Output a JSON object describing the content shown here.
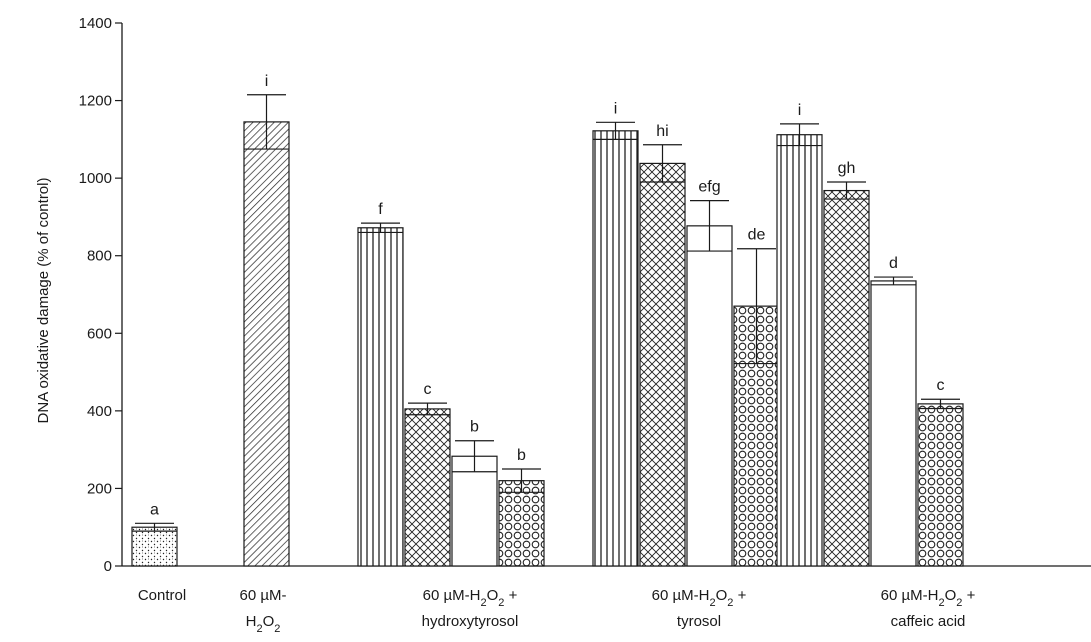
{
  "chart_data": {
    "type": "bar",
    "ylabel": "DNA oxidative damage (% of control)",
    "ylim": [
      0,
      1400
    ],
    "yticks": [
      0,
      200,
      400,
      600,
      800,
      1000,
      1200,
      1400
    ],
    "grid": false,
    "legend": "none",
    "groups": [
      {
        "label_lines": [
          "Control"
        ],
        "bars": [
          {
            "value": 100,
            "error": 10,
            "letter": "a",
            "pattern": "dots"
          }
        ]
      },
      {
        "label_lines": [
          "60 µM-",
          "H2O2"
        ],
        "bars": [
          {
            "value": 1145,
            "error": 70,
            "letter": "i",
            "pattern": "diagonal"
          }
        ]
      },
      {
        "label_lines": [
          "60 µM-H2O2 +",
          "hydroxytyrosol"
        ],
        "bars": [
          {
            "value": 872,
            "error": 12,
            "letter": "f",
            "pattern": "vertical"
          },
          {
            "value": 405,
            "error": 15,
            "letter": "c",
            "pattern": "crosshatch"
          },
          {
            "value": 283,
            "error": 40,
            "letter": "b",
            "pattern": "open"
          },
          {
            "value": 220,
            "error": 30,
            "letter": "b",
            "pattern": "circles"
          }
        ]
      },
      {
        "label_lines": [
          "60 µM-H2O2 +",
          "tyrosol"
        ],
        "bars": [
          {
            "value": 1122,
            "error": 22,
            "letter": "i",
            "pattern": "vertical"
          },
          {
            "value": 1038,
            "error": 48,
            "letter": "hi",
            "pattern": "crosshatch"
          },
          {
            "value": 877,
            "error": 65,
            "letter": "efg",
            "pattern": "open"
          },
          {
            "value": 670,
            "error": 148,
            "letter": "de",
            "pattern": "circles"
          }
        ]
      },
      {
        "label_lines": [
          "60 µM-H2O2 +",
          "caffeic acid"
        ],
        "bars": [
          {
            "value": 1112,
            "error": 28,
            "letter": "i",
            "pattern": "vertical"
          },
          {
            "value": 968,
            "error": 22,
            "letter": "gh",
            "pattern": "crosshatch"
          },
          {
            "value": 735,
            "error": 10,
            "letter": "d",
            "pattern": "open"
          },
          {
            "value": 418,
            "error": 12,
            "letter": "c",
            "pattern": "circles"
          }
        ]
      }
    ]
  }
}
